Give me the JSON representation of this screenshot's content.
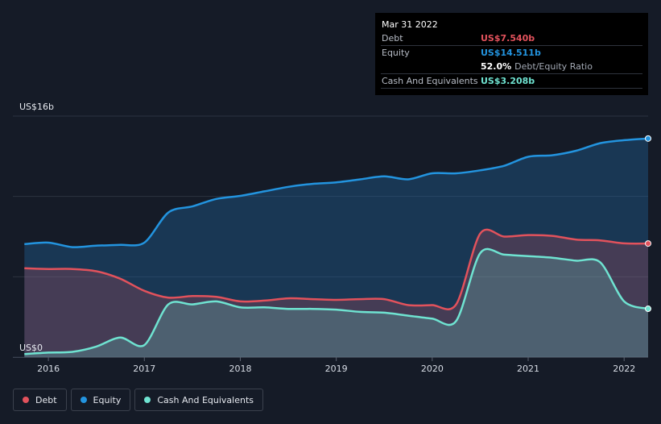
{
  "tooltip": {
    "date": "Mar 31 2022",
    "debt_label": "Debt",
    "debt_value": "US$7.540b",
    "equity_label": "Equity",
    "equity_value": "US$14.511b",
    "ratio_value": "52.0%",
    "ratio_label": "Debt/Equity Ratio",
    "cash_label": "Cash And Equivalents",
    "cash_value": "US$3.208b"
  },
  "legend": {
    "debt": "Debt",
    "equity": "Equity",
    "cash": "Cash And Equivalents"
  },
  "colors": {
    "debt": "#e2525c",
    "equity": "#2394df",
    "cash": "#6fe3d1",
    "background": "#151b27"
  },
  "chart_data": {
    "type": "area",
    "y_top_label": "US$16b",
    "y_bottom_label": "US$0",
    "ylim": [
      0,
      16
    ],
    "xlim": [
      2015.63,
      2022.25
    ],
    "x_ticks": [
      "2016",
      "2017",
      "2018",
      "2019",
      "2020",
      "2021",
      "2022"
    ],
    "gridlines": [
      0,
      5.33,
      10.67,
      16
    ],
    "series": [
      {
        "name": "Equity",
        "key": "equity",
        "x": [
          2015.75,
          2016.0,
          2016.25,
          2016.5,
          2016.75,
          2017.0,
          2017.25,
          2017.5,
          2017.75,
          2018.0,
          2018.25,
          2018.5,
          2018.75,
          2019.0,
          2019.25,
          2019.5,
          2019.75,
          2020.0,
          2020.25,
          2020.5,
          2020.75,
          2021.0,
          2021.25,
          2021.5,
          2021.75,
          2022.0,
          2022.25
        ],
        "values": [
          7.5,
          7.6,
          7.3,
          7.4,
          7.45,
          7.6,
          9.6,
          10.0,
          10.5,
          10.7,
          11.0,
          11.3,
          11.5,
          11.6,
          11.8,
          12.0,
          11.8,
          12.2,
          12.2,
          12.4,
          12.7,
          13.3,
          13.4,
          13.7,
          14.2,
          14.4,
          14.511
        ]
      },
      {
        "name": "Debt",
        "key": "debt",
        "x": [
          2015.75,
          2016.0,
          2016.25,
          2016.5,
          2016.75,
          2017.0,
          2017.25,
          2017.5,
          2017.75,
          2018.0,
          2018.25,
          2018.5,
          2018.75,
          2019.0,
          2019.25,
          2019.5,
          2019.75,
          2020.0,
          2020.25,
          2020.5,
          2020.75,
          2021.0,
          2021.25,
          2021.5,
          2021.75,
          2022.0,
          2022.25
        ],
        "values": [
          5.9,
          5.85,
          5.85,
          5.7,
          5.2,
          4.4,
          3.95,
          4.05,
          4.0,
          3.7,
          3.75,
          3.9,
          3.85,
          3.8,
          3.85,
          3.85,
          3.45,
          3.45,
          3.5,
          8.2,
          8.0,
          8.1,
          8.05,
          7.8,
          7.75,
          7.55,
          7.54
        ]
      },
      {
        "name": "Cash And Equivalents",
        "key": "cash",
        "x": [
          2015.75,
          2016.0,
          2016.25,
          2016.5,
          2016.75,
          2017.0,
          2017.25,
          2017.5,
          2017.75,
          2018.0,
          2018.25,
          2018.5,
          2018.75,
          2019.0,
          2019.25,
          2019.5,
          2019.75,
          2020.0,
          2020.25,
          2020.5,
          2020.75,
          2021.0,
          2021.25,
          2021.5,
          2021.75,
          2022.0,
          2022.25
        ],
        "values": [
          0.2,
          0.3,
          0.35,
          0.7,
          1.3,
          0.8,
          3.5,
          3.5,
          3.7,
          3.3,
          3.3,
          3.2,
          3.2,
          3.15,
          3.0,
          2.95,
          2.75,
          2.55,
          2.4,
          6.9,
          6.8,
          6.7,
          6.6,
          6.4,
          6.3,
          3.7,
          3.208
        ]
      }
    ]
  }
}
